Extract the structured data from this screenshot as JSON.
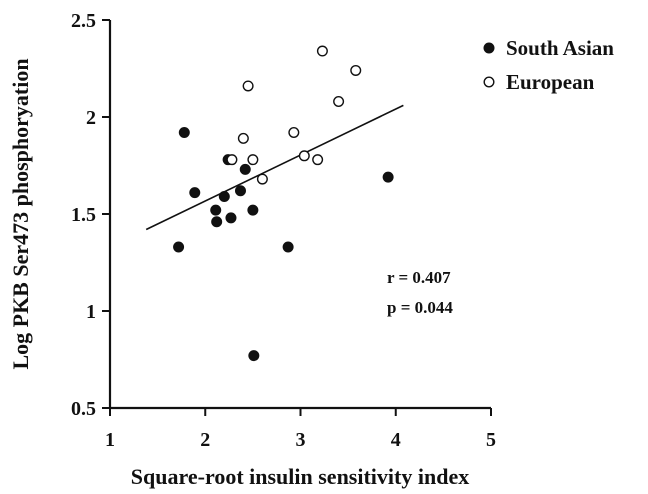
{
  "chart_data": {
    "type": "scatter",
    "xlabel": "Square-root insulin sensitivity index",
    "ylabel": "Log PKB Ser473 phosphoryation",
    "xlim": [
      1,
      5
    ],
    "ylim": [
      0.5,
      2.5
    ],
    "x_ticks": [
      "1",
      "2",
      "3",
      "4",
      "5"
    ],
    "y_ticks": [
      "0.5",
      "1",
      "1.5",
      "2",
      "2.5"
    ],
    "legend_position": "top-right",
    "series": [
      {
        "name": "South Asian",
        "marker": "filled-circle",
        "color": "#111111",
        "points": [
          {
            "x": 1.72,
            "y": 1.33
          },
          {
            "x": 1.78,
            "y": 1.92
          },
          {
            "x": 1.89,
            "y": 1.61
          },
          {
            "x": 2.11,
            "y": 1.52
          },
          {
            "x": 2.12,
            "y": 1.46
          },
          {
            "x": 2.2,
            "y": 1.59
          },
          {
            "x": 2.24,
            "y": 1.78
          },
          {
            "x": 2.27,
            "y": 1.48
          },
          {
            "x": 2.37,
            "y": 1.62
          },
          {
            "x": 2.42,
            "y": 1.73
          },
          {
            "x": 2.5,
            "y": 1.52
          },
          {
            "x": 2.51,
            "y": 0.77
          },
          {
            "x": 2.87,
            "y": 1.33
          },
          {
            "x": 3.92,
            "y": 1.69
          }
        ]
      },
      {
        "name": "European",
        "marker": "open-circle",
        "color": "#111111",
        "points": [
          {
            "x": 2.28,
            "y": 1.78
          },
          {
            "x": 2.4,
            "y": 1.89
          },
          {
            "x": 2.45,
            "y": 2.16
          },
          {
            "x": 2.5,
            "y": 1.78
          },
          {
            "x": 2.6,
            "y": 1.68
          },
          {
            "x": 2.93,
            "y": 1.92
          },
          {
            "x": 3.04,
            "y": 1.8
          },
          {
            "x": 3.18,
            "y": 1.78
          },
          {
            "x": 3.23,
            "y": 2.34
          },
          {
            "x": 3.4,
            "y": 2.08
          },
          {
            "x": 3.58,
            "y": 2.24
          }
        ]
      }
    ],
    "trendline": {
      "x": [
        1.38,
        4.08
      ],
      "y": [
        1.42,
        2.06
      ]
    },
    "annotations": {
      "r": "r = 0.407",
      "p": "p = 0.044"
    }
  }
}
